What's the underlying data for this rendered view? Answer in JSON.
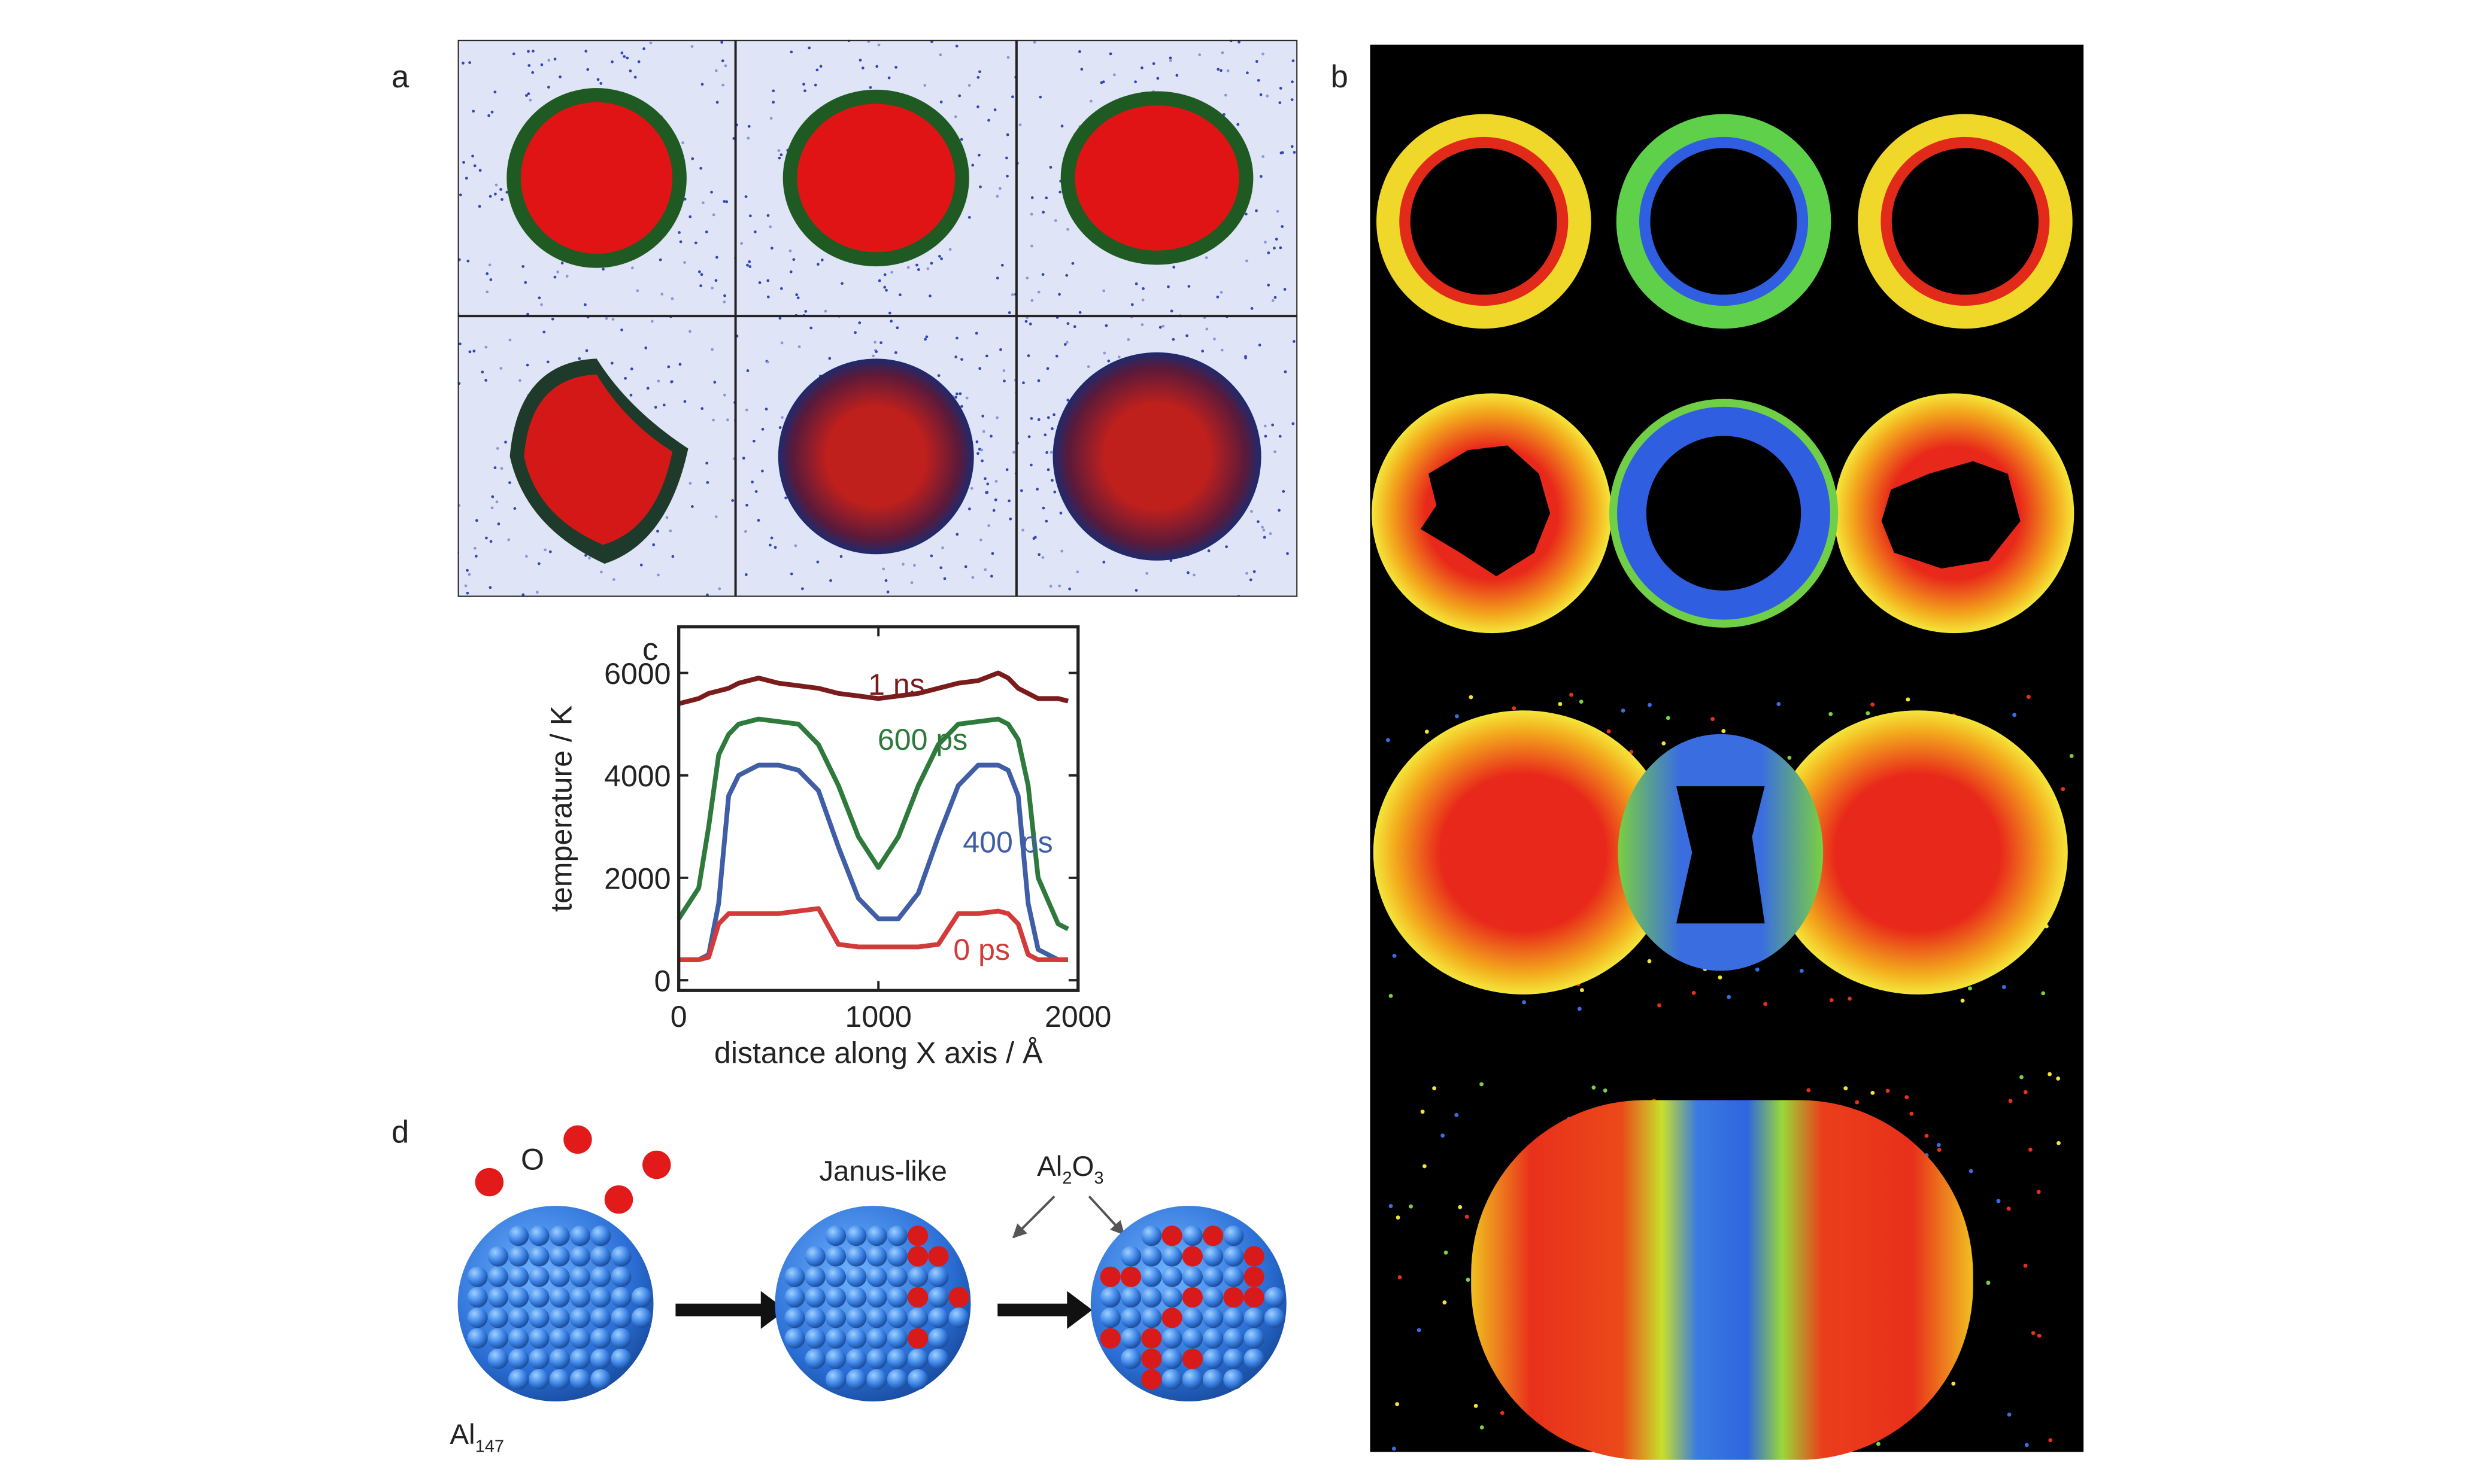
{
  "panel_labels": [
    "a",
    "b",
    "c",
    "d"
  ],
  "chart_data": {
    "type": "line",
    "xlabel": "distance along X axis / Å",
    "ylabel": "temperature / K",
    "x": [
      0,
      100,
      150,
      200,
      250,
      300,
      400,
      500,
      600,
      700,
      800,
      900,
      1000,
      1100,
      1200,
      1300,
      1400,
      1500,
      1600,
      1650,
      1700,
      1750,
      1800,
      1900,
      1950
    ],
    "series": [
      {
        "name": "1 ns",
        "color": "#7b1c1c",
        "values": [
          5400,
          5500,
          5600,
          5650,
          5700,
          5800,
          5900,
          5800,
          5750,
          5700,
          5600,
          5550,
          5500,
          5550,
          5600,
          5700,
          5800,
          5850,
          6000,
          5900,
          5700,
          5600,
          5500,
          5500,
          5450
        ]
      },
      {
        "name": "600 ps",
        "color": "#2e7a3c",
        "values": [
          1200,
          1800,
          3000,
          4400,
          4800,
          5000,
          5100,
          5050,
          5000,
          4600,
          3800,
          2800,
          2200,
          2800,
          3800,
          4600,
          5000,
          5050,
          5100,
          5000,
          4700,
          3800,
          2000,
          1100,
          1000
        ]
      },
      {
        "name": "400 ps",
        "color": "#3f5ea6",
        "values": [
          400,
          400,
          500,
          1500,
          3600,
          4000,
          4200,
          4200,
          4100,
          3700,
          2600,
          1600,
          1200,
          1200,
          1700,
          2800,
          3800,
          4200,
          4200,
          4100,
          3600,
          1500,
          600,
          400,
          400
        ]
      },
      {
        "name": "0 ps",
        "color": "#d33a3a",
        "values": [
          400,
          400,
          450,
          1100,
          1300,
          1300,
          1300,
          1300,
          1350,
          1400,
          700,
          650,
          650,
          650,
          650,
          700,
          1300,
          1300,
          1350,
          1300,
          1100,
          500,
          400,
          400,
          400
        ]
      }
    ],
    "xlim": [
      0,
      2000
    ],
    "ylim": [
      -200,
      6900
    ],
    "xticks": [
      0,
      1000,
      2000
    ],
    "yticks": [
      0,
      2000,
      4000,
      6000
    ]
  },
  "schematic": {
    "oxygen_label": "O",
    "janus_label": "Janus-like",
    "oxide_label": [
      "Al",
      "2",
      "O",
      "3"
    ],
    "cluster_label": [
      "Al",
      "147"
    ]
  }
}
